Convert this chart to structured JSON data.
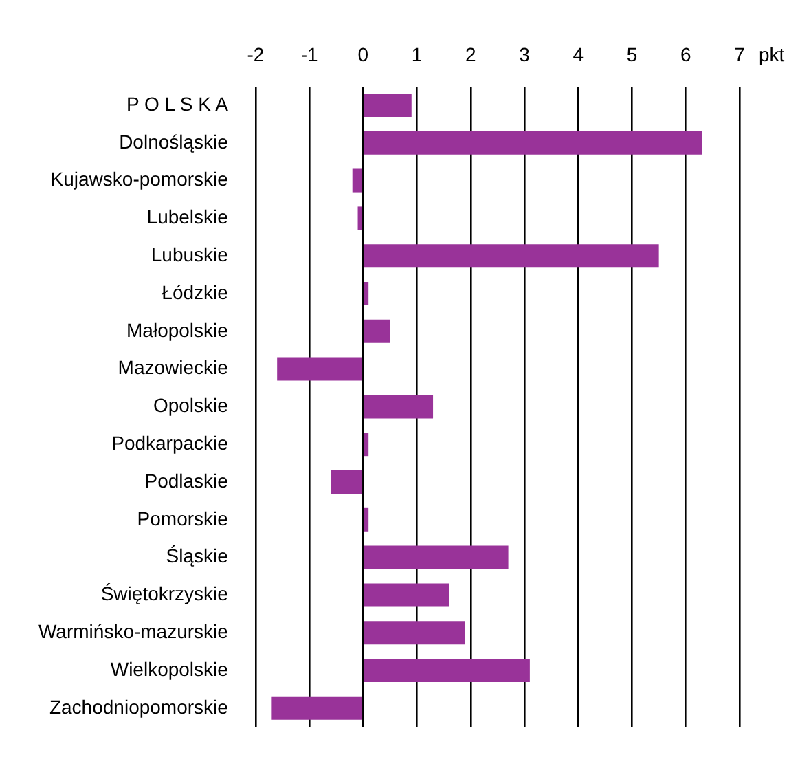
{
  "chart_data": {
    "type": "bar",
    "orientation": "horizontal",
    "xlabel": "pkt",
    "categories": [
      "P O L S K A",
      "Dolnośląskie",
      "Kujawsko-pomorskie",
      "Lubelskie",
      "Lubuskie",
      "Łódzkie",
      "Małopolskie",
      "Mazowieckie",
      "Opolskie",
      "Podkarpackie",
      "Podlaskie",
      "Pomorskie",
      "Śląskie",
      "Świętokrzyskie",
      "Warmińsko-mazurskie",
      "Wielkopolskie",
      "Zachodniopomorskie"
    ],
    "values": [
      0.9,
      6.3,
      -0.2,
      -0.1,
      5.5,
      0.1,
      0.5,
      -1.6,
      1.3,
      0.1,
      -0.6,
      0.1,
      2.7,
      1.6,
      1.9,
      3.1,
      -1.7
    ],
    "color": "#993399",
    "xlim": [
      -2,
      7
    ],
    "xticks": [
      -2,
      -1,
      0,
      1,
      2,
      3,
      4,
      5,
      6,
      7
    ],
    "grid": "x",
    "legend": false
  }
}
